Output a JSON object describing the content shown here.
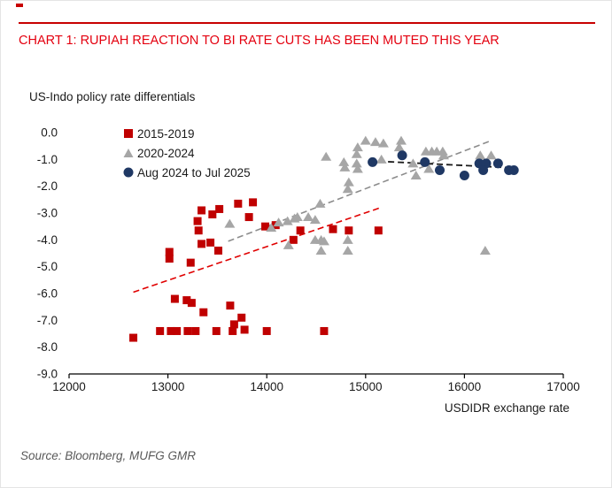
{
  "page": {
    "title": "CHART 1: RUPIAH REACTION TO BI RATE CUTS HAS BEEN MUTED THIS YEAR",
    "source": "Source: Bloomberg, MUFG GMR"
  },
  "colors": {
    "title_red": "#e4000f",
    "rule_red": "#c80000",
    "series_red": "#c00000",
    "series_gray": "#a6a6a6",
    "series_blue": "#1f3864",
    "trend_red": "#e00000",
    "trend_gray": "#8c8c8c",
    "trend_black": "#1a1a1a",
    "axis_black": "#000000",
    "source_gray": "#595959"
  },
  "chart_data": {
    "type": "scatter",
    "title": "US-Indo policy rate differentials",
    "xlabel": "USDIDR exchange rate",
    "ylabel": "",
    "xlim": [
      12000,
      17000
    ],
    "ylim": [
      -9,
      0
    ],
    "x_ticks": [
      12000,
      13000,
      14000,
      15000,
      16000,
      17000
    ],
    "y_ticks": [
      0,
      -1,
      -2,
      -3,
      -4,
      -5,
      -6,
      -7,
      -8,
      -9
    ],
    "grid": false,
    "legend_position": "top-left-inside",
    "series": [
      {
        "name": "2015-2019",
        "marker": "square",
        "color": "#c00000",
        "points": [
          [
            13340,
            -2.9
          ],
          [
            13450,
            -3.05
          ],
          [
            13520,
            -2.85
          ],
          [
            13710,
            -2.65
          ],
          [
            13860,
            -2.6
          ],
          [
            13820,
            -3.15
          ],
          [
            13300,
            -3.3
          ],
          [
            13310,
            -3.65
          ],
          [
            13340,
            -4.15
          ],
          [
            13430,
            -4.1
          ],
          [
            13510,
            -4.4
          ],
          [
            13015,
            -4.45
          ],
          [
            13015,
            -4.7
          ],
          [
            13230,
            -4.85
          ],
          [
            13070,
            -6.2
          ],
          [
            13190,
            -6.25
          ],
          [
            13240,
            -6.35
          ],
          [
            13360,
            -6.7
          ],
          [
            13630,
            -6.45
          ],
          [
            13745,
            -6.9
          ],
          [
            12650,
            -7.65
          ],
          [
            12920,
            -7.4
          ],
          [
            13030,
            -7.4
          ],
          [
            13090,
            -7.4
          ],
          [
            13200,
            -7.4
          ],
          [
            13280,
            -7.4
          ],
          [
            13490,
            -7.4
          ],
          [
            13655,
            -7.4
          ],
          [
            13670,
            -7.15
          ],
          [
            13775,
            -7.35
          ],
          [
            14000,
            -7.4
          ],
          [
            14580,
            -7.4
          ],
          [
            13985,
            -3.5
          ],
          [
            14090,
            -3.45
          ],
          [
            14340,
            -3.65
          ],
          [
            14270,
            -4.0
          ],
          [
            14670,
            -3.6
          ],
          [
            14830,
            -3.65
          ],
          [
            15130,
            -3.65
          ]
        ]
      },
      {
        "name": "2020-2024",
        "marker": "triangle",
        "color": "#a6a6a6",
        "points": [
          [
            13625,
            -3.4
          ],
          [
            14045,
            -3.55
          ],
          [
            14120,
            -3.35
          ],
          [
            14210,
            -3.3
          ],
          [
            14280,
            -3.2
          ],
          [
            14310,
            -3.15
          ],
          [
            14420,
            -3.15
          ],
          [
            14490,
            -3.25
          ],
          [
            14490,
            -4.0
          ],
          [
            14550,
            -4.0
          ],
          [
            14580,
            -4.05
          ],
          [
            14820,
            -4.0
          ],
          [
            14550,
            -4.4
          ],
          [
            14820,
            -4.4
          ],
          [
            14220,
            -4.2
          ],
          [
            14540,
            -2.65
          ],
          [
            14820,
            -2.1
          ],
          [
            16210,
            -4.4
          ],
          [
            14600,
            -0.9
          ],
          [
            14780,
            -1.1
          ],
          [
            14790,
            -1.3
          ],
          [
            14830,
            -1.85
          ],
          [
            14910,
            -0.8
          ],
          [
            14910,
            -1.15
          ],
          [
            14920,
            -0.55
          ],
          [
            14920,
            -1.35
          ],
          [
            15000,
            -0.3
          ],
          [
            15100,
            -0.35
          ],
          [
            15180,
            -0.4
          ],
          [
            15160,
            -1.0
          ],
          [
            15340,
            -0.55
          ],
          [
            15360,
            -0.3
          ],
          [
            15480,
            -1.15
          ],
          [
            15510,
            -1.6
          ],
          [
            15610,
            -0.7
          ],
          [
            15670,
            -0.7
          ],
          [
            15720,
            -0.7
          ],
          [
            15780,
            -0.7
          ],
          [
            15790,
            -0.85
          ],
          [
            15640,
            -1.35
          ],
          [
            16160,
            -0.85
          ],
          [
            16270,
            -0.85
          ]
        ]
      },
      {
        "name": "Aug 2024 to Jul 2025",
        "marker": "circle",
        "color": "#1f3864",
        "points": [
          [
            15070,
            -1.1
          ],
          [
            15370,
            -0.85
          ],
          [
            15600,
            -1.1
          ],
          [
            15750,
            -1.4
          ],
          [
            16000,
            -1.6
          ],
          [
            16150,
            -1.15
          ],
          [
            16220,
            -1.15
          ],
          [
            16340,
            -1.15
          ],
          [
            16190,
            -1.4
          ],
          [
            16450,
            -1.4
          ],
          [
            16500,
            -1.4
          ]
        ]
      }
    ],
    "trendlines": [
      {
        "series": "2015-2019",
        "style": "dashed",
        "color": "#e00000",
        "from": [
          12650,
          -5.95
        ],
        "to": [
          15150,
          -2.8
        ]
      },
      {
        "series": "2020-2024",
        "style": "dashed",
        "color": "#8c8c8c",
        "from": [
          13610,
          -4.05
        ],
        "to": [
          16270,
          -0.3
        ]
      },
      {
        "series": "Aug 2024 to Jul 2025",
        "style": "dashed",
        "color": "#1a1a1a",
        "from": [
          15030,
          -1.05
        ],
        "to": [
          16520,
          -1.32
        ]
      }
    ]
  }
}
